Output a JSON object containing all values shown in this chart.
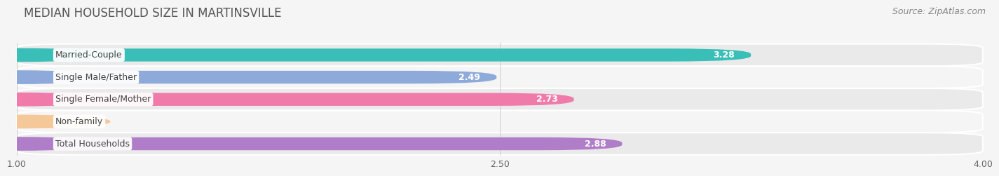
{
  "title": "MEDIAN HOUSEHOLD SIZE IN MARTINSVILLE",
  "source": "Source: ZipAtlas.com",
  "categories": [
    "Married-Couple",
    "Single Male/Father",
    "Single Female/Mother",
    "Non-family",
    "Total Households"
  ],
  "values": [
    3.28,
    2.49,
    2.73,
    1.09,
    2.88
  ],
  "bar_colors": [
    "#3abfb8",
    "#8eaadb",
    "#f07aaa",
    "#f5c89a",
    "#b07ec8"
  ],
  "value_colors": [
    "#ffffff",
    "#555555",
    "#555555",
    "#555555",
    "#ffffff"
  ],
  "xlim": [
    1.0,
    4.0
  ],
  "xticks": [
    1.0,
    2.5,
    4.0
  ],
  "row_bg_even": "#eaeaea",
  "row_bg_odd": "#f5f5f5",
  "background_color": "#f5f5f5",
  "title_fontsize": 12,
  "label_fontsize": 9,
  "value_fontsize": 9,
  "source_fontsize": 9
}
